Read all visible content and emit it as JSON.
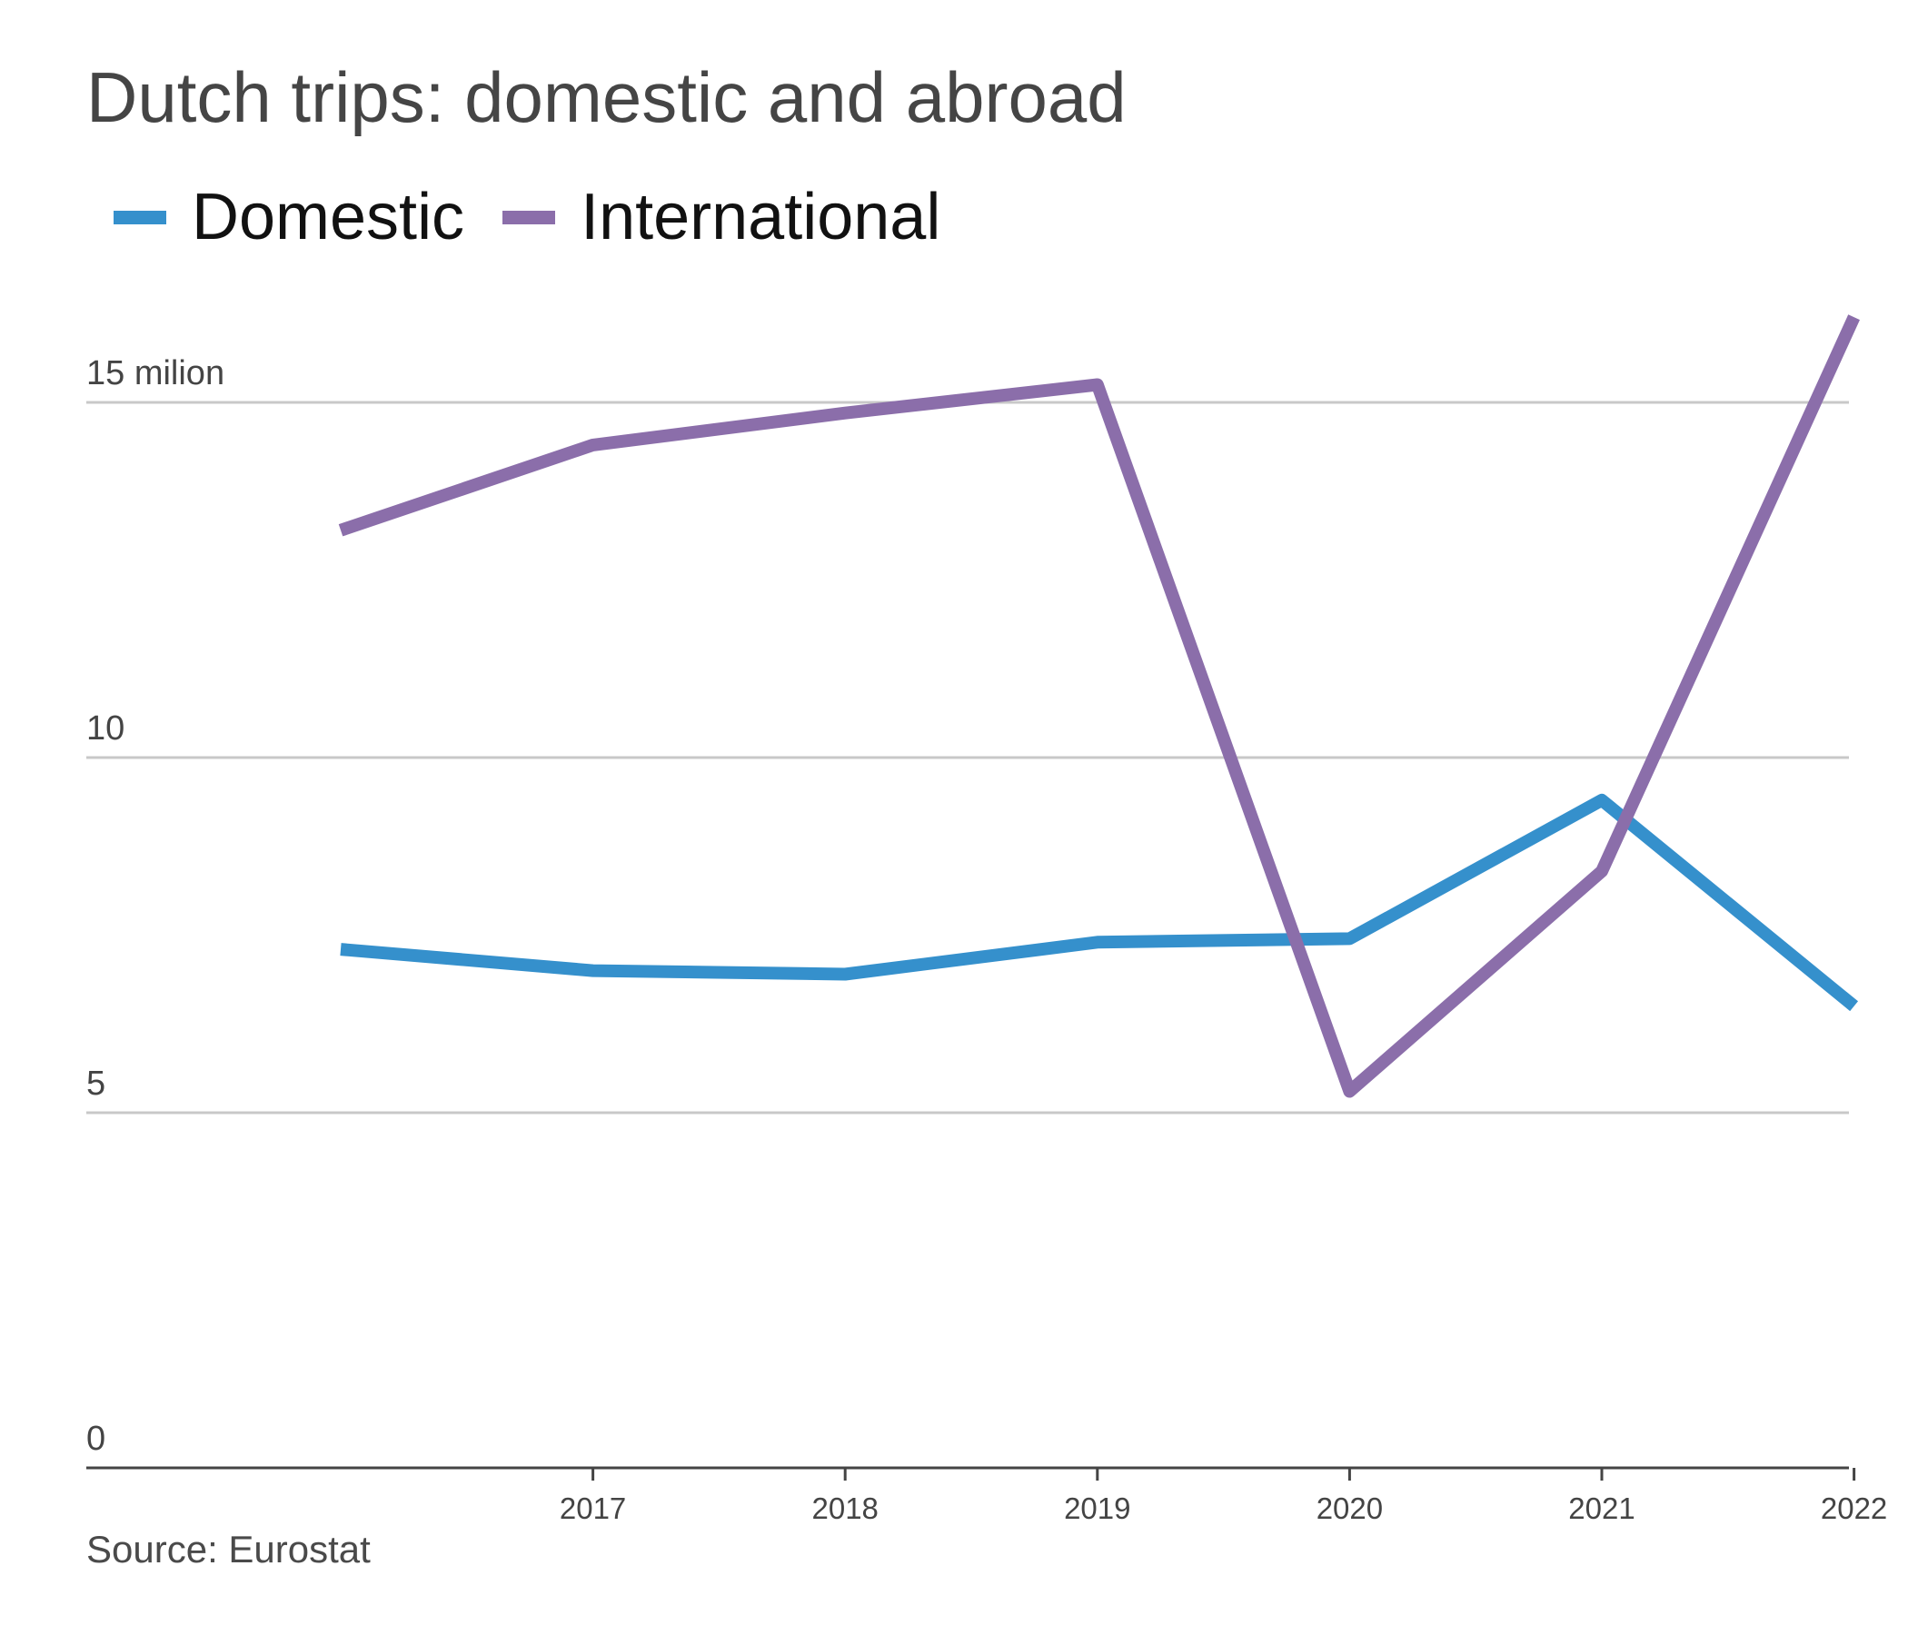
{
  "chart_data": {
    "type": "line",
    "title": "Dutch trips: domestic and abroad",
    "x": [
      2016,
      2017,
      2018,
      2019,
      2020,
      2021,
      2022
    ],
    "x_tick_labels": [
      "2017",
      "2018",
      "2019",
      "2020",
      "2021",
      "2022"
    ],
    "y_tick_labels": [
      "0",
      "5",
      "10",
      "15 milion"
    ],
    "ylim": [
      0,
      16.5
    ],
    "grid": true,
    "legend_position": "top-left",
    "series": [
      {
        "name": "Domestic",
        "color": "#3590cc",
        "values": [
          7.3,
          7.0,
          6.95,
          7.4,
          7.45,
          9.4,
          6.5
        ]
      },
      {
        "name": "International",
        "color": "#8b6eaa",
        "values": [
          13.2,
          14.4,
          14.85,
          15.25,
          5.3,
          8.4,
          16.2
        ]
      }
    ],
    "source": "Source: Eurostat"
  }
}
